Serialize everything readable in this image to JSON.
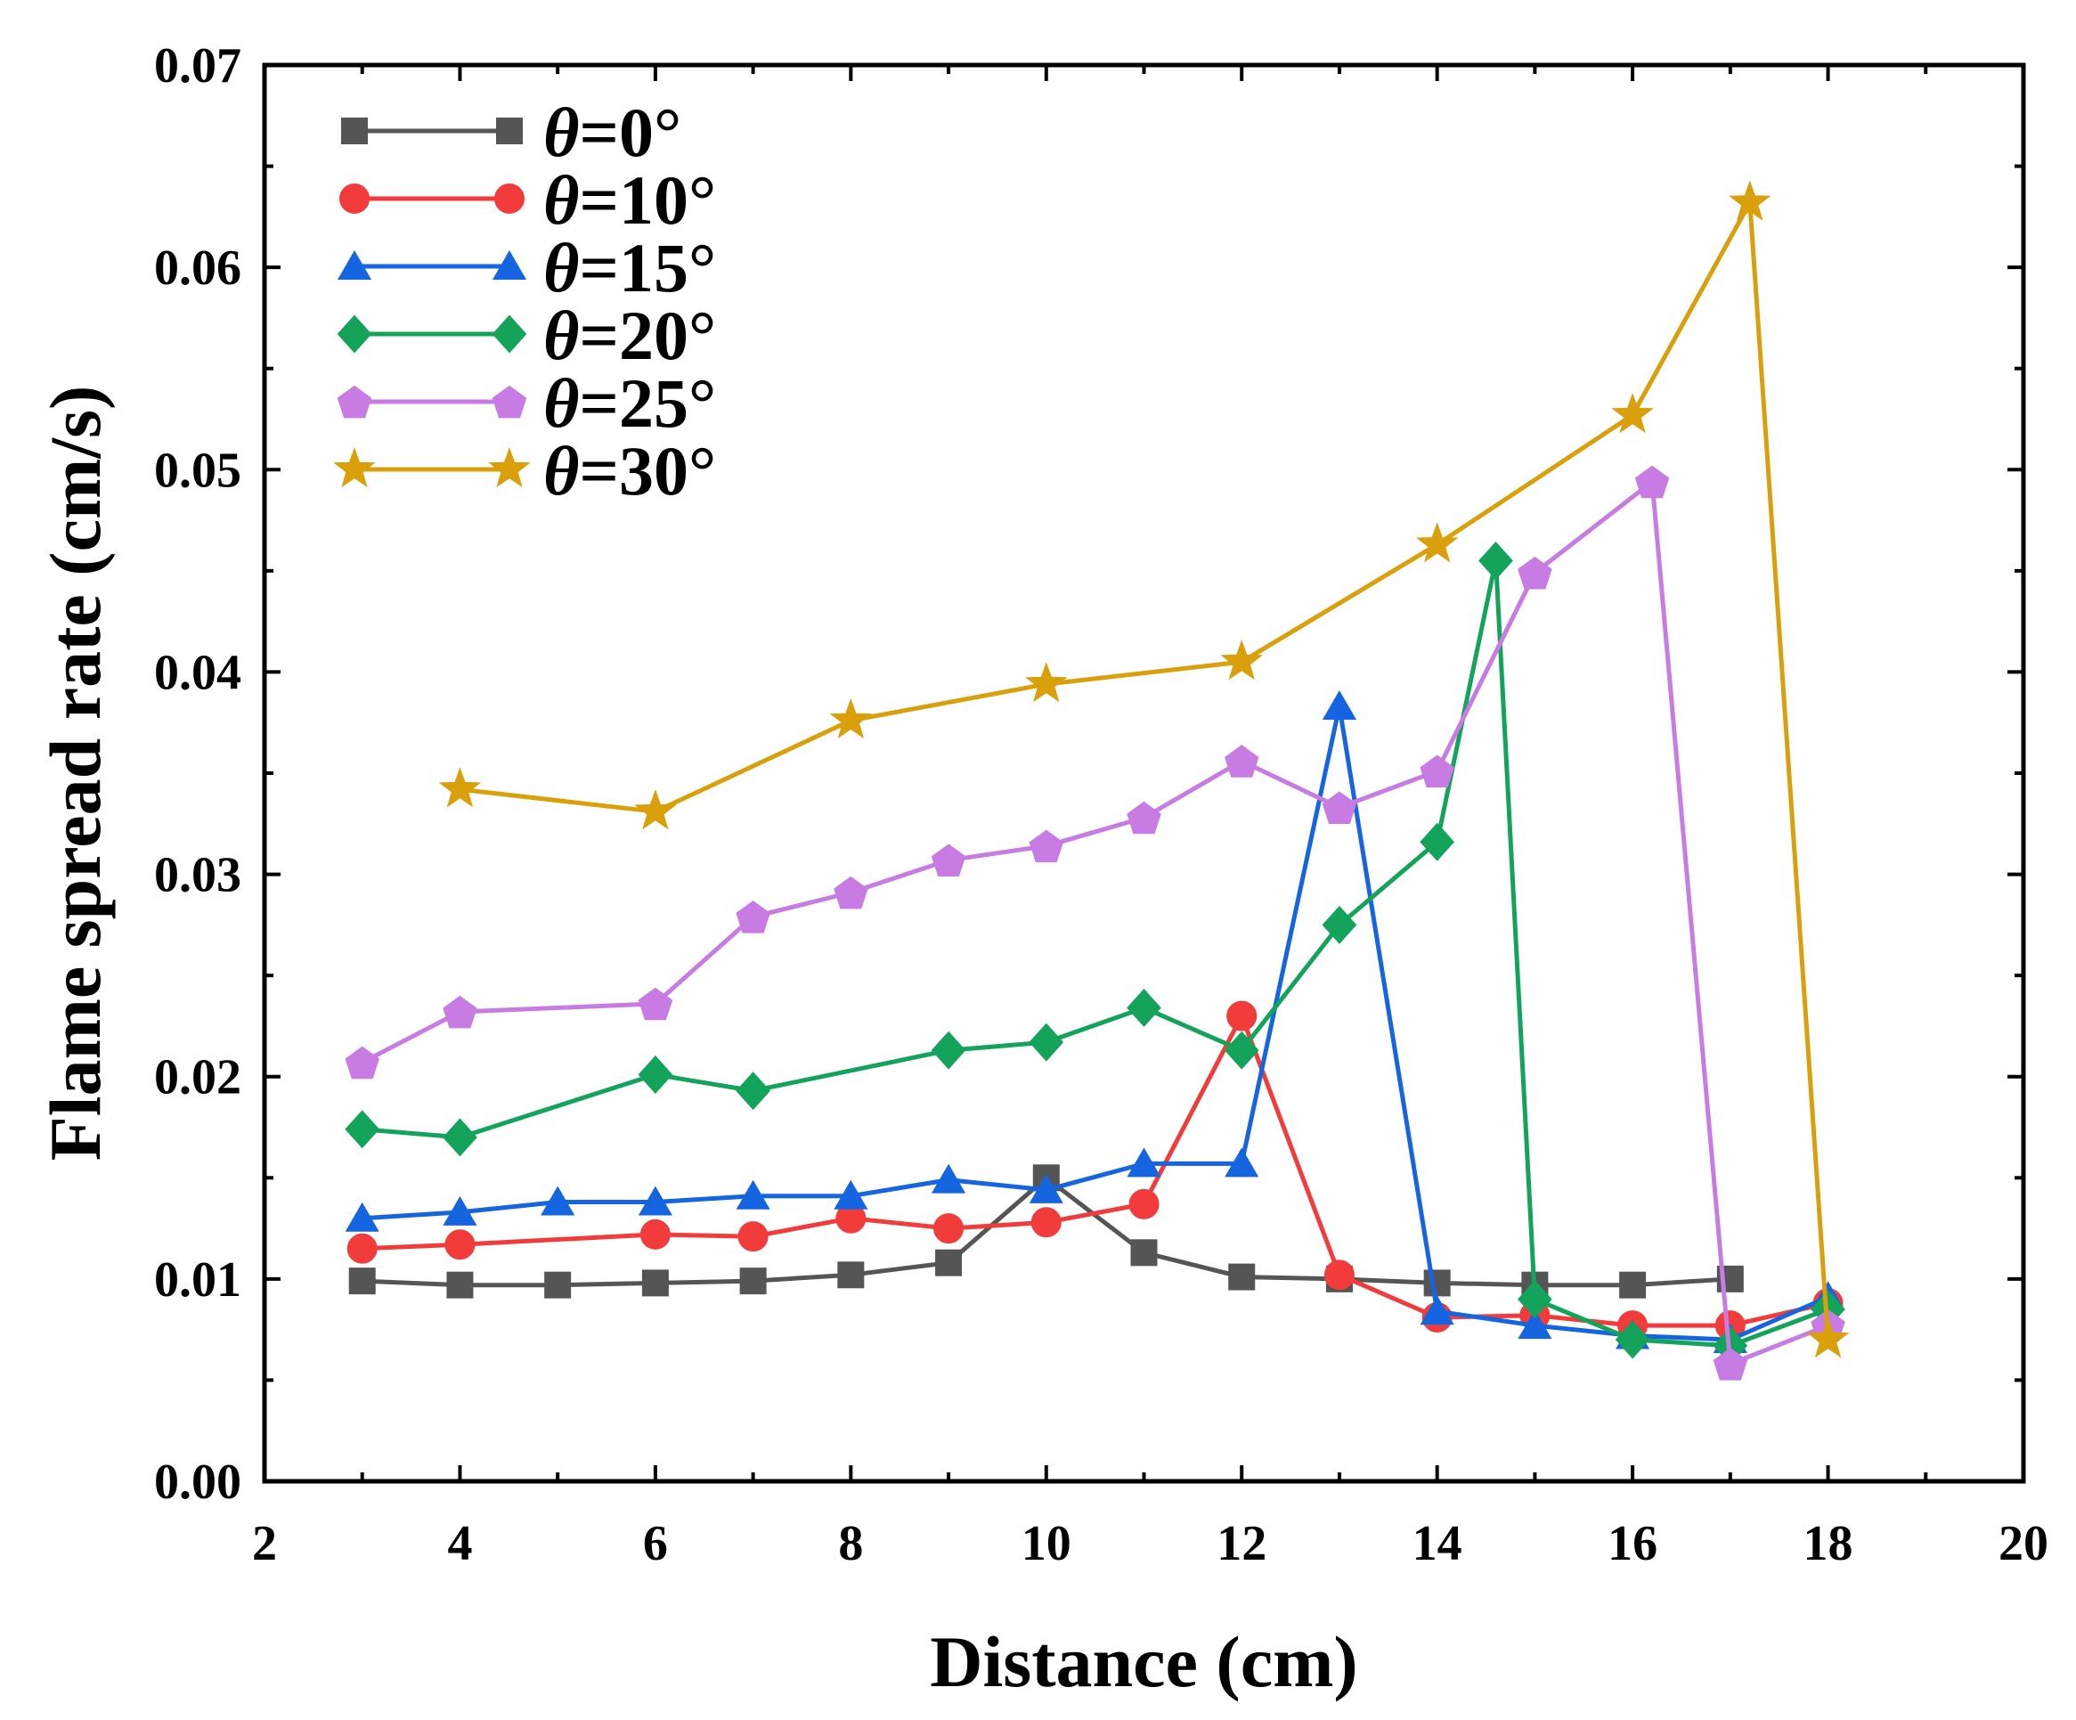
{
  "chart_data": {
    "type": "line",
    "xlabel": "Distance (cm)",
    "ylabel": "Flame spread rate (cm/s)",
    "xlim": [
      2,
      20
    ],
    "ylim": [
      0,
      0.07
    ],
    "x_ticks": [
      "2",
      "4",
      "6",
      "8",
      "10",
      "12",
      "14",
      "16",
      "18",
      "20"
    ],
    "y_ticks": [
      "0.00",
      "0.01",
      "0.02",
      "0.03",
      "0.04",
      "0.05",
      "0.06",
      "0.07"
    ],
    "legend_position": "top-left",
    "grid": false,
    "series": [
      {
        "name_symbol": "θ",
        "name_rest": "=0°",
        "color": "#555555",
        "marker": "square",
        "x": [
          3,
          4,
          5,
          6,
          7,
          8,
          9,
          10,
          11,
          12,
          13,
          14,
          15,
          16,
          17
        ],
        "y": [
          0.0099,
          0.0097,
          0.0097,
          0.0098,
          0.0099,
          0.0102,
          0.0108,
          0.015,
          0.0113,
          0.0101,
          0.01,
          0.0098,
          0.0097,
          0.0097,
          0.01
        ]
      },
      {
        "name_symbol": "θ",
        "name_rest": "=10°",
        "color": "#f23c3c",
        "marker": "circle",
        "x": [
          3,
          4,
          6,
          7,
          8,
          9,
          10,
          11,
          12,
          13,
          14,
          15,
          16,
          17,
          18
        ],
        "y": [
          0.0115,
          0.0117,
          0.0122,
          0.0121,
          0.013,
          0.0125,
          0.0128,
          0.0137,
          0.023,
          0.0102,
          0.0081,
          0.0082,
          0.0077,
          0.0077,
          0.0088
        ]
      },
      {
        "name_symbol": "θ",
        "name_rest": "=15°",
        "color": "#1565e0",
        "marker": "triangle",
        "x": [
          3,
          4,
          5,
          6,
          7,
          8,
          9,
          10,
          11,
          12,
          13,
          14,
          15,
          16,
          17,
          18
        ],
        "y": [
          0.013,
          0.0133,
          0.0138,
          0.0138,
          0.0141,
          0.0141,
          0.0149,
          0.0144,
          0.0157,
          0.0157,
          0.0383,
          0.0084,
          0.0077,
          0.0072,
          0.007,
          0.0091
        ]
      },
      {
        "name_symbol": "θ",
        "name_rest": "=20°",
        "color": "#13a35a",
        "marker": "diamond",
        "x": [
          3,
          4,
          6,
          7,
          9,
          10,
          11,
          12,
          13,
          14,
          14.6,
          15,
          16,
          17,
          18
        ],
        "y": [
          0.0174,
          0.017,
          0.0201,
          0.0193,
          0.0213,
          0.0217,
          0.0234,
          0.0213,
          0.0275,
          0.0316,
          0.0455,
          0.009,
          0.007,
          0.0067,
          0.0085
        ]
      },
      {
        "name_symbol": "θ",
        "name_rest": "=25°",
        "color": "#c77be3",
        "marker": "pentagon",
        "x": [
          3,
          4,
          6,
          7,
          8,
          9,
          10,
          11,
          12,
          13,
          14,
          15,
          16.2,
          17,
          18
        ],
        "y": [
          0.0207,
          0.0232,
          0.0236,
          0.0279,
          0.0291,
          0.0307,
          0.0314,
          0.0328,
          0.0356,
          0.0333,
          0.0351,
          0.0449,
          0.0494,
          0.0058,
          0.0077
        ]
      },
      {
        "name_symbol": "θ",
        "name_rest": "=30°",
        "color": "#d9a00b",
        "marker": "star",
        "x": [
          4,
          6,
          8,
          10,
          12,
          14,
          16,
          17.2,
          18
        ],
        "y": [
          0.0342,
          0.0331,
          0.0376,
          0.0394,
          0.0405,
          0.0463,
          0.0527,
          0.0632,
          0.007
        ]
      }
    ]
  }
}
